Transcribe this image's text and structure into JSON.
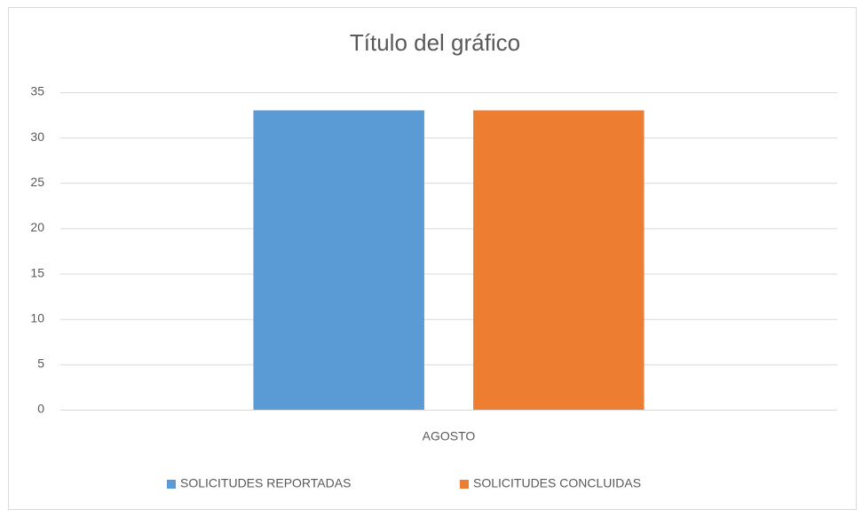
{
  "chart_data": {
    "type": "bar",
    "title": "Título del gráfico",
    "categories": [
      "AGOSTO"
    ],
    "series": [
      {
        "name": "SOLICITUDES REPORTADAS",
        "color": "#5b9bd5",
        "values": [
          33
        ]
      },
      {
        "name": "SOLICITUDES CONCLUIDAS",
        "color": "#ed7d31",
        "values": [
          33
        ]
      }
    ],
    "ylim": [
      0,
      35
    ],
    "yticks": [
      0,
      5,
      10,
      15,
      20,
      25,
      30,
      35
    ],
    "grid": true,
    "legend": "bottom"
  }
}
